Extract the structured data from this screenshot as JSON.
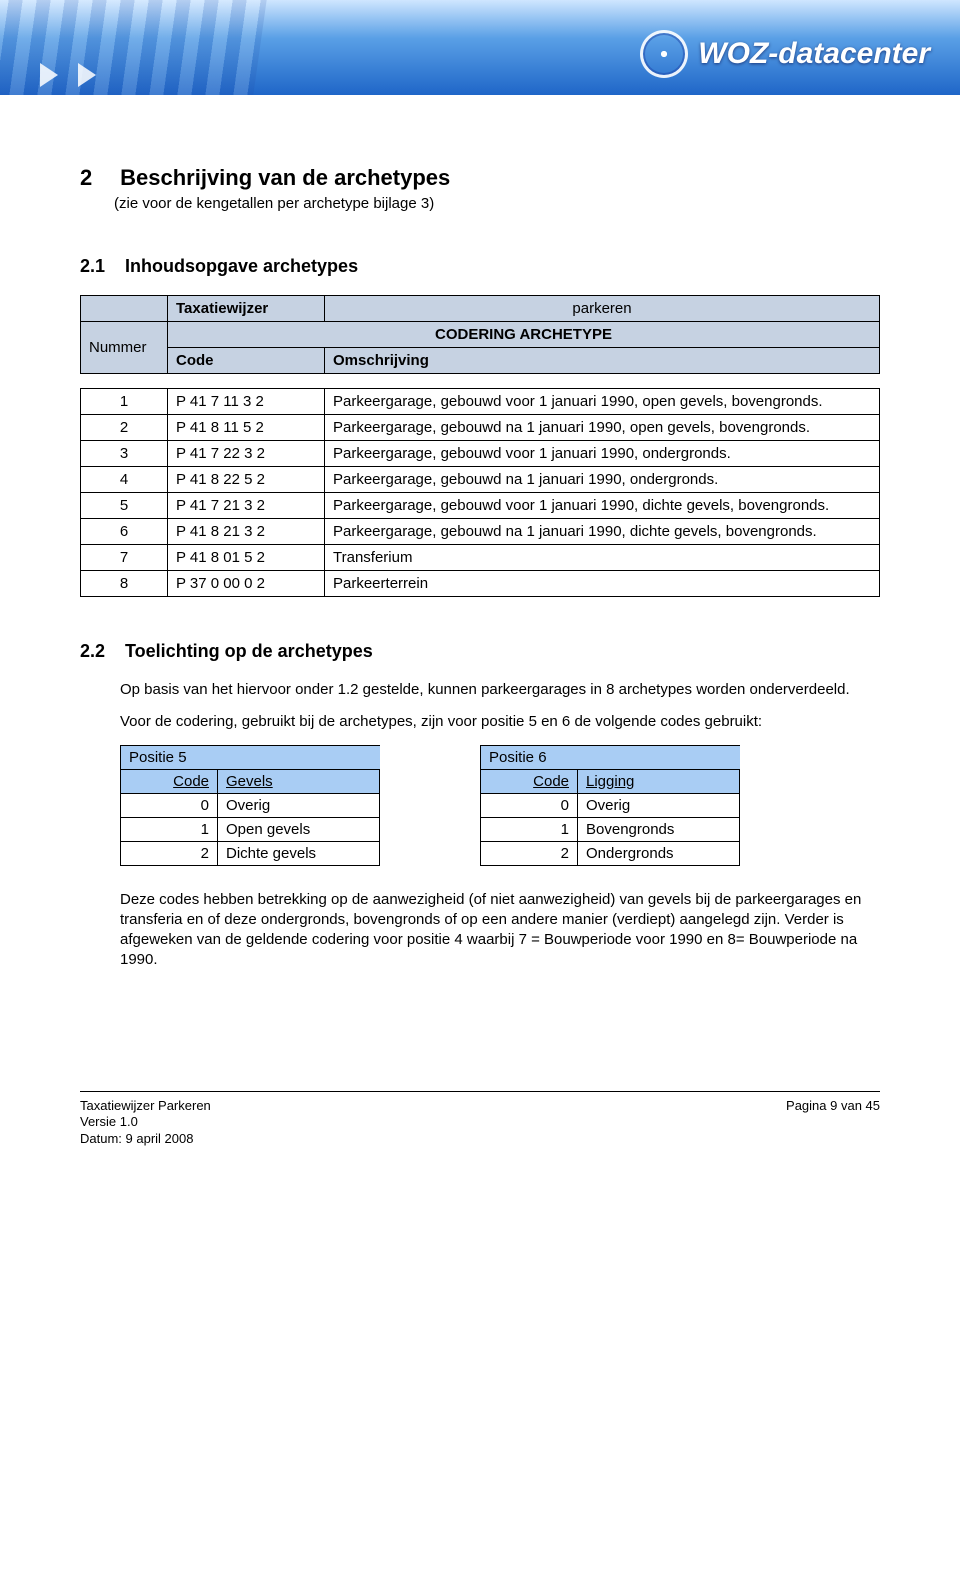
{
  "banner": {
    "brand": "WOZ-datacenter"
  },
  "heading_num": "2",
  "heading_text": "Beschrijving van de archetypes",
  "heading_sub": "(zie voor de kengetallen per archetype bijlage 3)",
  "sub1_num": "2.1",
  "sub1_text": "Inhoudsopgave archetypes",
  "coding": {
    "taxatiewijzer_label": "Taxatiewijzer",
    "taxatiewijzer_value": "parkeren",
    "archetype_label": "CODERING ARCHETYPE",
    "nummer_label": "Nummer",
    "code_label": "Code",
    "omschrijving_label": "Omschrijving",
    "rows": [
      {
        "n": "1",
        "code": "P 41 7 11 3 2",
        "desc": "Parkeergarage, gebouwd voor 1 januari 1990, open gevels, bovengronds."
      },
      {
        "n": "2",
        "code": "P 41 8 11 5 2",
        "desc": "Parkeergarage, gebouwd na 1 januari 1990, open gevels, bovengronds."
      },
      {
        "n": "3",
        "code": "P 41 7 22 3 2",
        "desc": "Parkeergarage, gebouwd voor 1 januari 1990, ondergronds."
      },
      {
        "n": "4",
        "code": "P 41 8 22 5 2",
        "desc": "Parkeergarage, gebouwd na 1 januari 1990, ondergronds."
      },
      {
        "n": "5",
        "code": "P 41 7 21 3 2",
        "desc": "Parkeergarage, gebouwd voor 1 januari 1990, dichte gevels, bovengronds."
      },
      {
        "n": "6",
        "code": "P 41 8 21 3 2",
        "desc": "Parkeergarage, gebouwd na 1 januari 1990, dichte gevels, bovengronds."
      },
      {
        "n": "7",
        "code": "P 41 8 01 5 2",
        "desc": "Transferium"
      },
      {
        "n": "8",
        "code": "P 37 0 00 0 2",
        "desc": "Parkeerterrein"
      }
    ]
  },
  "sub2_num": "2.2",
  "sub2_text": "Toelichting op de archetypes",
  "para1": "Op basis van het hiervoor onder 1.2 gestelde, kunnen parkeergarages in 8 archetypes worden onderverdeeld.",
  "para2": "Voor de codering, gebruikt bij de archetypes, zijn voor positie 5 en 6 de volgende codes gebruikt:",
  "pos5": {
    "title": "Positie 5",
    "code_label": "Code",
    "value_label": "Gevels",
    "rows": [
      {
        "c": "0",
        "v": "Overig"
      },
      {
        "c": "1",
        "v": "Open gevels"
      },
      {
        "c": "2",
        "v": "Dichte gevels"
      }
    ]
  },
  "pos6": {
    "title": "Positie 6",
    "code_label": "Code",
    "value_label": "Ligging",
    "rows": [
      {
        "c": "0",
        "v": "Overig"
      },
      {
        "c": "1",
        "v": "Bovengronds"
      },
      {
        "c": "2",
        "v": "Ondergronds"
      }
    ]
  },
  "para3": "Deze codes hebben betrekking op de aanwezigheid (of niet aanwezigheid) van gevels bij de parkeergarages en transferia en of deze ondergronds, bovengronds of op een andere manier (verdiept) aangelegd zijn. Verder is afgeweken van de geldende codering voor positie 4 waarbij 7 = Bouwperiode voor 1990 en 8= Bouwperiode na 1990.",
  "footer": {
    "l1": "Taxatiewijzer Parkeren",
    "l2": "Versie 1.0",
    "l3": "Datum: 9 april 2008",
    "r": "Pagina 9 van 45"
  }
}
